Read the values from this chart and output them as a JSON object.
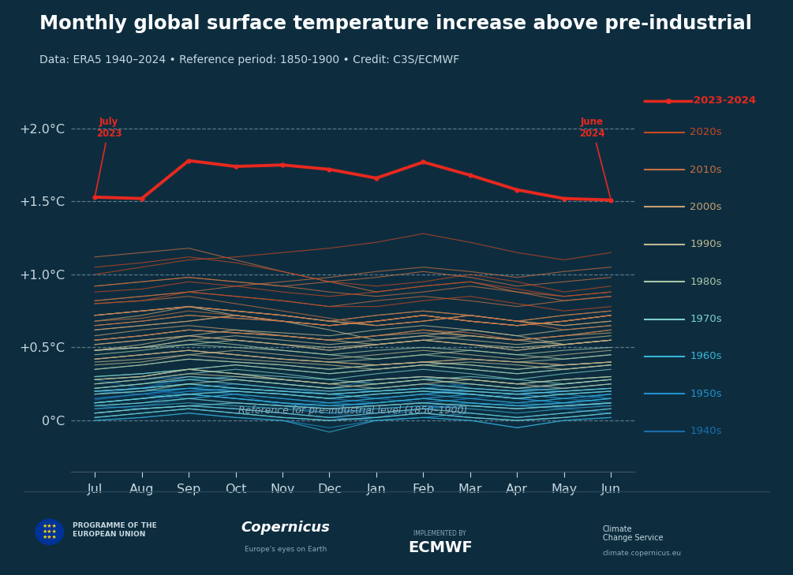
{
  "title": "Monthly global surface temperature increase above pre-industrial",
  "subtitle": "Data: ERA5 1940–2024 • Reference period: 1850-1900 • Credit: C3S/ECMWF",
  "bg_color": "#0d2d3f",
  "text_color": "#c8d8e0",
  "title_color": "#ffffff",
  "months_labels": [
    "Jul",
    "Aug",
    "Sep",
    "Oct",
    "Nov",
    "Dec",
    "Jan",
    "Feb",
    "Mar",
    "Apr",
    "May",
    "Jun"
  ],
  "yticks": [
    0.0,
    0.5,
    1.0,
    1.5,
    2.0
  ],
  "ytick_labels": [
    "0°C",
    "+0.5°C",
    "+1.0°C",
    "+1.5°C",
    "+2.0°C"
  ],
  "ylim": [
    -0.35,
    2.25
  ],
  "highlight_line": [
    1.53,
    1.52,
    1.78,
    1.74,
    1.75,
    1.72,
    1.66,
    1.77,
    1.68,
    1.58,
    1.52,
    1.51
  ],
  "highlight_label": "2023-2024",
  "highlight_color": "#e8281e",
  "decade_colors": {
    "1940s": "#1a6faa",
    "1950s": "#2290cc",
    "1960s": "#38b5d8",
    "1970s": "#7ecfc8",
    "1980s": "#a8c8a8",
    "1990s": "#c0b890",
    "2000s": "#c8a070",
    "2010s": "#c87040",
    "2020s": "#c84820"
  },
  "series_data": {
    "1940": [
      0.14,
      0.18,
      0.22,
      0.18,
      0.1,
      0.05,
      0.02,
      0.08,
      0.12,
      0.1,
      0.09,
      0.12
    ],
    "1941": [
      0.2,
      0.22,
      0.3,
      0.28,
      0.25,
      0.22,
      0.28,
      0.3,
      0.22,
      0.2,
      0.25,
      0.28
    ],
    "1942": [
      0.28,
      0.22,
      0.18,
      0.15,
      0.12,
      0.1,
      0.08,
      0.1,
      0.12,
      0.1,
      0.08,
      0.05
    ],
    "1943": [
      0.1,
      0.12,
      0.18,
      0.15,
      0.12,
      0.1,
      0.12,
      0.15,
      0.18,
      0.15,
      0.12,
      0.1
    ],
    "1944": [
      0.18,
      0.22,
      0.28,
      0.25,
      0.22,
      0.18,
      0.2,
      0.22,
      0.18,
      0.15,
      0.12,
      0.18
    ],
    "1945": [
      0.2,
      0.18,
      0.15,
      0.12,
      0.1,
      0.12,
      0.15,
      0.12,
      0.1,
      0.12,
      0.15,
      0.18
    ],
    "1946": [
      0.12,
      0.15,
      0.18,
      0.15,
      0.12,
      0.08,
      0.05,
      0.08,
      0.1,
      0.08,
      0.1,
      0.12
    ],
    "1947": [
      0.08,
      0.1,
      0.15,
      0.18,
      0.15,
      0.12,
      0.1,
      0.12,
      0.15,
      0.18,
      0.15,
      0.12
    ],
    "1948": [
      0.15,
      0.18,
      0.2,
      0.18,
      0.15,
      0.12,
      0.1,
      0.12,
      0.15,
      0.12,
      0.1,
      0.12
    ],
    "1949": [
      0.1,
      0.08,
      0.1,
      0.12,
      0.1,
      0.08,
      0.05,
      0.08,
      0.1,
      0.08,
      0.1,
      0.12
    ],
    "1950": [
      0.05,
      0.08,
      0.1,
      0.08,
      0.05,
      0.02,
      0.0,
      0.02,
      0.05,
      0.02,
      0.05,
      0.08
    ],
    "1951": [
      0.12,
      0.15,
      0.2,
      0.22,
      0.2,
      0.18,
      0.15,
      0.18,
      0.22,
      0.2,
      0.18,
      0.15
    ],
    "1952": [
      0.18,
      0.2,
      0.22,
      0.2,
      0.18,
      0.15,
      0.12,
      0.15,
      0.18,
      0.15,
      0.12,
      0.15
    ],
    "1953": [
      0.2,
      0.22,
      0.25,
      0.22,
      0.2,
      0.18,
      0.2,
      0.22,
      0.2,
      0.18,
      0.2,
      0.22
    ],
    "1954": [
      0.05,
      0.08,
      0.1,
      0.08,
      0.05,
      0.02,
      0.05,
      0.08,
      0.05,
      0.02,
      0.05,
      0.08
    ],
    "1955": [
      0.02,
      0.05,
      0.08,
      0.05,
      0.02,
      0.0,
      0.02,
      0.05,
      0.02,
      0.0,
      0.02,
      0.05
    ],
    "1956": [
      0.0,
      0.02,
      0.05,
      0.02,
      0.0,
      -0.05,
      0.0,
      0.02,
      0.0,
      -0.05,
      0.0,
      0.02
    ],
    "1957": [
      0.15,
      0.18,
      0.22,
      0.25,
      0.22,
      0.2,
      0.22,
      0.25,
      0.22,
      0.2,
      0.22,
      0.25
    ],
    "1958": [
      0.25,
      0.28,
      0.3,
      0.28,
      0.25,
      0.22,
      0.2,
      0.22,
      0.25,
      0.22,
      0.2,
      0.22
    ],
    "1959": [
      0.2,
      0.22,
      0.25,
      0.22,
      0.2,
      0.18,
      0.15,
      0.18,
      0.2,
      0.18,
      0.15,
      0.18
    ],
    "1960": [
      0.12,
      0.15,
      0.18,
      0.15,
      0.12,
      0.1,
      0.12,
      0.15,
      0.12,
      0.1,
      0.12,
      0.15
    ],
    "1961": [
      0.2,
      0.22,
      0.25,
      0.22,
      0.2,
      0.18,
      0.2,
      0.22,
      0.2,
      0.18,
      0.2,
      0.22
    ],
    "1962": [
      0.18,
      0.2,
      0.22,
      0.2,
      0.18,
      0.15,
      0.18,
      0.2,
      0.18,
      0.15,
      0.18,
      0.2
    ],
    "1963": [
      0.12,
      0.15,
      0.18,
      0.2,
      0.18,
      0.15,
      0.18,
      0.2,
      0.18,
      0.15,
      0.18,
      0.2
    ],
    "1964": [
      0.0,
      0.02,
      0.05,
      0.02,
      0.0,
      -0.08,
      0.0,
      0.02,
      0.0,
      -0.05,
      0.0,
      0.02
    ],
    "1965": [
      0.02,
      0.05,
      0.08,
      0.05,
      0.02,
      0.0,
      0.02,
      0.05,
      0.02,
      0.0,
      0.02,
      0.05
    ],
    "1966": [
      0.1,
      0.12,
      0.15,
      0.18,
      0.15,
      0.12,
      0.15,
      0.18,
      0.15,
      0.12,
      0.15,
      0.18
    ],
    "1967": [
      0.12,
      0.15,
      0.18,
      0.15,
      0.12,
      0.1,
      0.12,
      0.15,
      0.12,
      0.1,
      0.12,
      0.15
    ],
    "1968": [
      0.08,
      0.1,
      0.12,
      0.1,
      0.08,
      0.05,
      0.08,
      0.1,
      0.08,
      0.05,
      0.08,
      0.1
    ],
    "1969": [
      0.22,
      0.25,
      0.28,
      0.3,
      0.28,
      0.25,
      0.28,
      0.3,
      0.28,
      0.25,
      0.28,
      0.3
    ],
    "1970": [
      0.2,
      0.22,
      0.25,
      0.22,
      0.2,
      0.18,
      0.2,
      0.22,
      0.2,
      0.18,
      0.2,
      0.22
    ],
    "1971": [
      0.05,
      0.08,
      0.1,
      0.08,
      0.05,
      0.02,
      0.05,
      0.08,
      0.05,
      0.02,
      0.05,
      0.08
    ],
    "1972": [
      0.12,
      0.15,
      0.18,
      0.2,
      0.18,
      0.15,
      0.18,
      0.2,
      0.18,
      0.15,
      0.18,
      0.2
    ],
    "1973": [
      0.3,
      0.32,
      0.35,
      0.32,
      0.3,
      0.28,
      0.25,
      0.28,
      0.3,
      0.28,
      0.25,
      0.28
    ],
    "1974": [
      0.02,
      0.05,
      0.08,
      0.05,
      0.02,
      0.0,
      0.02,
      0.05,
      0.02,
      0.0,
      0.02,
      0.05
    ],
    "1975": [
      0.1,
      0.12,
      0.15,
      0.12,
      0.1,
      0.08,
      0.1,
      0.12,
      0.1,
      0.08,
      0.1,
      0.12
    ],
    "1976": [
      0.05,
      0.08,
      0.1,
      0.12,
      0.1,
      0.08,
      0.1,
      0.12,
      0.1,
      0.08,
      0.1,
      0.12
    ],
    "1977": [
      0.3,
      0.32,
      0.35,
      0.38,
      0.35,
      0.32,
      0.35,
      0.38,
      0.35,
      0.32,
      0.35,
      0.38
    ],
    "1978": [
      0.22,
      0.25,
      0.28,
      0.25,
      0.22,
      0.2,
      0.22,
      0.25,
      0.22,
      0.2,
      0.22,
      0.25
    ],
    "1979": [
      0.25,
      0.28,
      0.32,
      0.35,
      0.32,
      0.28,
      0.32,
      0.35,
      0.32,
      0.28,
      0.32,
      0.35
    ],
    "1980": [
      0.35,
      0.38,
      0.42,
      0.4,
      0.38,
      0.35,
      0.38,
      0.4,
      0.38,
      0.35,
      0.38,
      0.4
    ],
    "1981": [
      0.42,
      0.45,
      0.48,
      0.45,
      0.42,
      0.4,
      0.42,
      0.45,
      0.42,
      0.4,
      0.42,
      0.45
    ],
    "1982": [
      0.18,
      0.2,
      0.25,
      0.28,
      0.25,
      0.22,
      0.25,
      0.28,
      0.25,
      0.22,
      0.25,
      0.28
    ],
    "1983": [
      0.48,
      0.5,
      0.52,
      0.5,
      0.48,
      0.45,
      0.42,
      0.45,
      0.48,
      0.45,
      0.42,
      0.45
    ],
    "1984": [
      0.28,
      0.3,
      0.35,
      0.32,
      0.28,
      0.25,
      0.28,
      0.3,
      0.28,
      0.25,
      0.28,
      0.3
    ],
    "1985": [
      0.22,
      0.25,
      0.3,
      0.28,
      0.25,
      0.22,
      0.25,
      0.28,
      0.25,
      0.22,
      0.25,
      0.28
    ],
    "1986": [
      0.28,
      0.3,
      0.35,
      0.38,
      0.35,
      0.32,
      0.35,
      0.38,
      0.35,
      0.32,
      0.35,
      0.38
    ],
    "1987": [
      0.45,
      0.48,
      0.52,
      0.55,
      0.52,
      0.48,
      0.52,
      0.55,
      0.52,
      0.48,
      0.52,
      0.55
    ],
    "1988": [
      0.48,
      0.5,
      0.55,
      0.52,
      0.48,
      0.45,
      0.48,
      0.5,
      0.48,
      0.45,
      0.48,
      0.5
    ],
    "1989": [
      0.35,
      0.38,
      0.42,
      0.4,
      0.38,
      0.35,
      0.38,
      0.4,
      0.38,
      0.35,
      0.38,
      0.4
    ],
    "1990": [
      0.52,
      0.55,
      0.58,
      0.55,
      0.52,
      0.5,
      0.52,
      0.55,
      0.52,
      0.5,
      0.52,
      0.55
    ],
    "1991": [
      0.48,
      0.5,
      0.55,
      0.58,
      0.55,
      0.52,
      0.55,
      0.58,
      0.55,
      0.52,
      0.55,
      0.58
    ],
    "1992": [
      0.25,
      0.28,
      0.32,
      0.3,
      0.28,
      0.25,
      0.22,
      0.25,
      0.28,
      0.25,
      0.22,
      0.25
    ],
    "1993": [
      0.28,
      0.3,
      0.35,
      0.32,
      0.28,
      0.25,
      0.28,
      0.3,
      0.28,
      0.25,
      0.28,
      0.3
    ],
    "1994": [
      0.38,
      0.4,
      0.45,
      0.48,
      0.45,
      0.42,
      0.45,
      0.48,
      0.45,
      0.42,
      0.45,
      0.48
    ],
    "1995": [
      0.55,
      0.58,
      0.62,
      0.6,
      0.58,
      0.55,
      0.52,
      0.55,
      0.58,
      0.55,
      0.52,
      0.55
    ],
    "1996": [
      0.42,
      0.45,
      0.48,
      0.45,
      0.42,
      0.4,
      0.38,
      0.4,
      0.42,
      0.4,
      0.38,
      0.4
    ],
    "1997": [
      0.48,
      0.52,
      0.58,
      0.62,
      0.6,
      0.58,
      0.62,
      0.65,
      0.62,
      0.58,
      0.62,
      0.65
    ],
    "1998": [
      0.72,
      0.75,
      0.78,
      0.72,
      0.68,
      0.62,
      0.55,
      0.58,
      0.62,
      0.58,
      0.52,
      0.55
    ],
    "1999": [
      0.4,
      0.42,
      0.45,
      0.42,
      0.4,
      0.38,
      0.35,
      0.38,
      0.4,
      0.38,
      0.35,
      0.38
    ],
    "2000": [
      0.42,
      0.45,
      0.48,
      0.45,
      0.42,
      0.4,
      0.38,
      0.4,
      0.42,
      0.4,
      0.38,
      0.4
    ],
    "2001": [
      0.55,
      0.58,
      0.62,
      0.6,
      0.58,
      0.55,
      0.58,
      0.6,
      0.58,
      0.55,
      0.58,
      0.6
    ],
    "2002": [
      0.65,
      0.68,
      0.72,
      0.7,
      0.68,
      0.65,
      0.68,
      0.72,
      0.68,
      0.65,
      0.68,
      0.72
    ],
    "2003": [
      0.68,
      0.72,
      0.78,
      0.75,
      0.72,
      0.68,
      0.65,
      0.68,
      0.72,
      0.68,
      0.65,
      0.68
    ],
    "2004": [
      0.58,
      0.62,
      0.65,
      0.62,
      0.58,
      0.55,
      0.58,
      0.62,
      0.58,
      0.55,
      0.58,
      0.62
    ],
    "2005": [
      0.72,
      0.75,
      0.78,
      0.75,
      0.72,
      0.68,
      0.65,
      0.68,
      0.72,
      0.68,
      0.65,
      0.68
    ],
    "2006": [
      0.62,
      0.65,
      0.68,
      0.72,
      0.68,
      0.65,
      0.68,
      0.72,
      0.68,
      0.65,
      0.68,
      0.72
    ],
    "2007": [
      0.72,
      0.75,
      0.78,
      0.75,
      0.72,
      0.68,
      0.72,
      0.75,
      0.72,
      0.68,
      0.72,
      0.75
    ],
    "2008": [
      0.52,
      0.55,
      0.58,
      0.55,
      0.52,
      0.48,
      0.52,
      0.55,
      0.52,
      0.48,
      0.52,
      0.55
    ],
    "2009": [
      0.62,
      0.65,
      0.68,
      0.72,
      0.68,
      0.65,
      0.68,
      0.72,
      0.68,
      0.65,
      0.68,
      0.72
    ],
    "2010": [
      0.8,
      0.82,
      0.85,
      0.8,
      0.75,
      0.7,
      0.65,
      0.68,
      0.72,
      0.68,
      0.62,
      0.65
    ],
    "2011": [
      0.55,
      0.58,
      0.62,
      0.6,
      0.58,
      0.55,
      0.58,
      0.62,
      0.6,
      0.55,
      0.58,
      0.62
    ],
    "2012": [
      0.65,
      0.68,
      0.72,
      0.7,
      0.68,
      0.65,
      0.68,
      0.72,
      0.68,
      0.65,
      0.68,
      0.72
    ],
    "2013": [
      0.68,
      0.7,
      0.75,
      0.72,
      0.68,
      0.65,
      0.68,
      0.72,
      0.68,
      0.65,
      0.68,
      0.72
    ],
    "2014": [
      0.72,
      0.75,
      0.78,
      0.75,
      0.72,
      0.68,
      0.72,
      0.75,
      0.72,
      0.68,
      0.72,
      0.75
    ],
    "2015": [
      0.82,
      0.85,
      0.88,
      0.92,
      0.95,
      0.98,
      1.02,
      1.05,
      1.02,
      0.98,
      1.02,
      1.05
    ],
    "2016": [
      1.12,
      1.15,
      1.18,
      1.1,
      1.02,
      0.95,
      0.88,
      0.92,
      0.95,
      0.88,
      0.82,
      0.85
    ],
    "2017": [
      0.92,
      0.95,
      0.98,
      0.95,
      0.92,
      0.88,
      0.85,
      0.88,
      0.92,
      0.88,
      0.85,
      0.88
    ],
    "2018": [
      0.82,
      0.85,
      0.88,
      0.85,
      0.82,
      0.78,
      0.82,
      0.85,
      0.82,
      0.78,
      0.82,
      0.85
    ],
    "2019": [
      0.92,
      0.95,
      0.98,
      0.95,
      0.92,
      0.95,
      0.98,
      1.02,
      0.98,
      0.92,
      0.95,
      0.98
    ],
    "2020": [
      1.05,
      1.08,
      1.12,
      1.08,
      1.02,
      0.95,
      0.92,
      0.95,
      1.0,
      0.95,
      0.88,
      0.92
    ],
    "2021": [
      0.8,
      0.82,
      0.88,
      0.85,
      0.82,
      0.78,
      0.78,
      0.82,
      0.85,
      0.8,
      0.75,
      0.78
    ],
    "2022": [
      0.88,
      0.9,
      0.95,
      0.92,
      0.88,
      0.85,
      0.88,
      0.92,
      0.95,
      0.9,
      0.85,
      0.88
    ],
    "2023": [
      1.0,
      1.05,
      1.1,
      1.12,
      1.15,
      1.18,
      1.22,
      1.28,
      1.22,
      1.15,
      1.1,
      1.15
    ]
  }
}
